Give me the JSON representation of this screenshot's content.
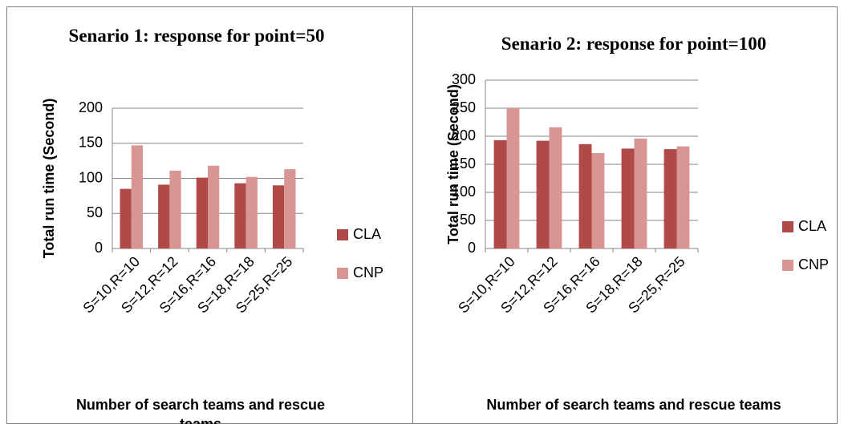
{
  "chart_data": [
    {
      "type": "bar",
      "title": "Senario 1: response for point=50",
      "x_label": "Number of search teams and rescue teams",
      "y_label": "Total run time (Second)",
      "categories": [
        "S=10,R=10",
        "S=12,R=12",
        "S=16,R=16",
        "S=18,R=18",
        "S=25,R=25"
      ],
      "series": [
        {
          "name": "CLA",
          "color": "#b04a48",
          "values": [
            85,
            91,
            101,
            93,
            90
          ]
        },
        {
          "name": "CNP",
          "color": "#d99594",
          "values": [
            147,
            111,
            118,
            102,
            113
          ]
        }
      ],
      "ylim": [
        0,
        200
      ],
      "yticks": [
        0,
        50,
        100,
        150,
        200
      ],
      "grid": true,
      "legend": "right"
    },
    {
      "type": "bar",
      "title": "Senario 2: response for point=100",
      "x_label": "Number of search teams and rescue teams",
      "y_label": "Total run time (Second)",
      "categories": [
        "S=10,R=10",
        "S=12,R=12",
        "S=16,R=16",
        "S=18,R=18",
        "S=25,R=25"
      ],
      "series": [
        {
          "name": "CLA",
          "color": "#b04a48",
          "values": [
            193,
            192,
            186,
            178,
            177
          ]
        },
        {
          "name": "CNP",
          "color": "#d99594",
          "values": [
            250,
            216,
            170,
            196,
            182
          ]
        }
      ],
      "ylim": [
        0,
        300
      ],
      "yticks": [
        0,
        50,
        100,
        150,
        200,
        250,
        300
      ],
      "grid": true,
      "legend": "right"
    }
  ]
}
